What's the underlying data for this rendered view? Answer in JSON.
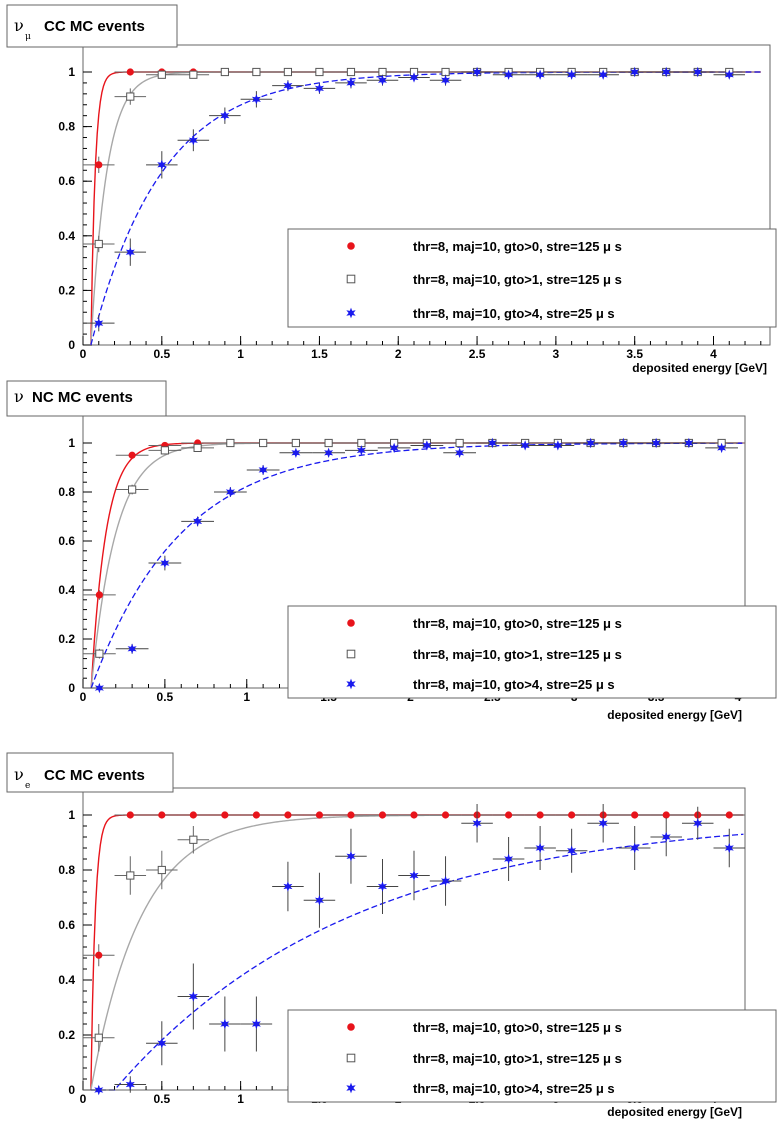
{
  "chart_data": [
    {
      "type": "scatter",
      "title": "CC MC events",
      "title_symbol": "ν",
      "title_subscript": "μ",
      "xlabel": "deposited energy [GeV]",
      "ylabel": "",
      "xlim": [
        0,
        4.3
      ],
      "ylim": [
        0,
        1.1
      ],
      "xticks": [
        0,
        0.5,
        1,
        1.5,
        2,
        2.5,
        3,
        3.5,
        4
      ],
      "xtick_labels": [
        "0",
        "0.5",
        "1",
        "1.5",
        "2",
        "2.5",
        "3",
        "3.5",
        "4"
      ],
      "yticks": [
        0,
        0.2,
        0.4,
        0.6,
        0.8,
        1
      ],
      "ytick_labels": [
        "0",
        "0.2",
        "0.4",
        "0.6",
        "0.8",
        "1"
      ],
      "grid": false,
      "legend_position": "right",
      "series": [
        {
          "name": "thr=8, maj=10, gto>0, stre=125 μ s",
          "marker": "circle",
          "color": "#e8141b",
          "line_style": "solid",
          "fit_scale": 0.027,
          "x": [
            0.1,
            0.3,
            0.5,
            0.7,
            0.9,
            1.1,
            1.3,
            1.5,
            1.7,
            1.9,
            2.1,
            2.3,
            2.5,
            2.7,
            2.9,
            3.1,
            3.3,
            3.5,
            3.7,
            3.9,
            4.1
          ],
          "y": [
            0.66,
            1.0,
            1.0,
            1.0,
            1.0,
            1.0,
            1.0,
            1.0,
            1.0,
            1.0,
            1.0,
            1.0,
            1.0,
            1.0,
            1.0,
            1.0,
            1.0,
            1.0,
            1.0,
            1.0,
            1.0
          ],
          "yerr": [
            0.03,
            0,
            0,
            0,
            0,
            0,
            0,
            0,
            0,
            0,
            0,
            0,
            0,
            0,
            0,
            0,
            0,
            0,
            0,
            0,
            0
          ]
        },
        {
          "name": "thr=8, maj=10, gto>1, stre=125 μ s",
          "marker": "open-square",
          "color": "#555555",
          "line_style": "solid",
          "line_color": "#a8a8a8",
          "fit_scale": 0.1,
          "x": [
            0.1,
            0.3,
            0.5,
            0.7,
            0.9,
            1.1,
            1.3,
            1.5,
            1.7,
            1.9,
            2.1,
            2.3,
            2.5,
            2.7,
            2.9,
            3.1,
            3.3,
            3.5,
            3.7,
            3.9,
            4.1
          ],
          "y": [
            0.37,
            0.91,
            0.99,
            0.99,
            1.0,
            1.0,
            1.0,
            1.0,
            1.0,
            1.0,
            1.0,
            1.0,
            1.0,
            1.0,
            1.0,
            1.0,
            1.0,
            1.0,
            1.0,
            1.0,
            1.0
          ],
          "yerr": [
            0.03,
            0.03,
            0.01,
            0.01,
            0,
            0,
            0,
            0,
            0,
            0,
            0,
            0,
            0,
            0,
            0,
            0,
            0,
            0,
            0,
            0,
            0
          ]
        },
        {
          "name": "thr=8, maj=10, gto>4, stre=25 μ s",
          "marker": "star",
          "color": "#1a1aee",
          "line_style": "dashed",
          "fit_scale": 0.45,
          "x": [
            0.1,
            0.3,
            0.5,
            0.7,
            0.9,
            1.1,
            1.3,
            1.5,
            1.7,
            1.9,
            2.1,
            2.3,
            2.5,
            2.7,
            2.9,
            3.1,
            3.3,
            3.5,
            3.7,
            3.9,
            4.1
          ],
          "y": [
            0.08,
            0.34,
            0.66,
            0.75,
            0.84,
            0.9,
            0.95,
            0.94,
            0.96,
            0.97,
            0.98,
            0.97,
            1.0,
            0.99,
            0.99,
            0.99,
            0.99,
            1.0,
            1.0,
            1.0,
            0.99
          ],
          "yerr": [
            0.03,
            0.05,
            0.05,
            0.04,
            0.03,
            0.03,
            0.02,
            0.02,
            0.02,
            0.02,
            0.01,
            0.02,
            0.01,
            0.01,
            0.01,
            0.01,
            0.01,
            0.01,
            0.01,
            0.01,
            0.01
          ]
        }
      ]
    },
    {
      "type": "scatter",
      "title": "NC MC events",
      "title_symbol": "ν",
      "title_subscript": "",
      "xlabel": "deposited energy [GeV]",
      "ylabel": "",
      "xlim": [
        0,
        4.05
      ],
      "ylim": [
        0,
        1.1
      ],
      "xticks": [
        0,
        0.5,
        1,
        1.5,
        2,
        2.5,
        3,
        3.5,
        4
      ],
      "xtick_labels": [
        "0",
        "0.5",
        "1",
        "1.5",
        "2",
        "2.5",
        "3",
        "3.5",
        "4"
      ],
      "yticks": [
        0,
        0.2,
        0.4,
        0.6,
        0.8,
        1
      ],
      "ytick_labels": [
        "0",
        "0.2",
        "0.4",
        "0.6",
        "0.8",
        "1"
      ],
      "grid": false,
      "legend_position": "bottom-right",
      "series": [
        {
          "name": "thr=8, maj=10, gto>0, stre=125 μ s",
          "marker": "circle",
          "color": "#e8141b",
          "line_style": "solid",
          "fit_scale": 0.09,
          "x": [
            0.1,
            0.3,
            0.5,
            0.7,
            0.9,
            1.1,
            1.3,
            1.5,
            1.7,
            1.9,
            2.1,
            2.3,
            2.5,
            2.7,
            2.9,
            3.1,
            3.3,
            3.5,
            3.7,
            3.9
          ],
          "y": [
            0.38,
            0.95,
            0.99,
            1.0,
            1.0,
            1.0,
            1.0,
            1.0,
            1.0,
            1.0,
            1.0,
            1.0,
            1.0,
            1.0,
            1.0,
            1.0,
            1.0,
            1.0,
            1.0,
            1.0
          ],
          "yerr": [
            0.02,
            0.01,
            0.01,
            0,
            0,
            0,
            0,
            0,
            0,
            0,
            0,
            0,
            0,
            0,
            0,
            0,
            0,
            0,
            0,
            0
          ]
        },
        {
          "name": "thr=8, maj=10, gto>1, stre=125 μ s",
          "marker": "open-square",
          "color": "#555555",
          "line_style": "solid",
          "line_color": "#a8a8a8",
          "fit_scale": 0.15,
          "x": [
            0.1,
            0.3,
            0.5,
            0.7,
            0.9,
            1.1,
            1.3,
            1.5,
            1.7,
            1.9,
            2.1,
            2.3,
            2.5,
            2.7,
            2.9,
            3.1,
            3.3,
            3.5,
            3.7,
            3.9
          ],
          "y": [
            0.14,
            0.81,
            0.97,
            0.98,
            1.0,
            1.0,
            1.0,
            1.0,
            1.0,
            1.0,
            1.0,
            1.0,
            1.0,
            1.0,
            1.0,
            1.0,
            1.0,
            1.0,
            1.0,
            1.0
          ],
          "yerr": [
            0.02,
            0.02,
            0.01,
            0.01,
            0,
            0,
            0,
            0,
            0,
            0,
            0,
            0,
            0,
            0,
            0,
            0,
            0,
            0,
            0,
            0
          ]
        },
        {
          "name": "thr=8, maj=10, gto>4, stre=25 μ s",
          "marker": "star",
          "color": "#1a1aee",
          "line_style": "dashed",
          "fit_scale": 0.55,
          "x": [
            0.1,
            0.3,
            0.5,
            0.7,
            0.9,
            1.1,
            1.3,
            1.5,
            1.7,
            1.9,
            2.1,
            2.3,
            2.5,
            2.7,
            2.9,
            3.1,
            3.3,
            3.5,
            3.7,
            3.9
          ],
          "y": [
            0.0,
            0.16,
            0.51,
            0.68,
            0.8,
            0.89,
            0.96,
            0.96,
            0.97,
            0.98,
            0.99,
            0.96,
            1.0,
            0.99,
            0.99,
            1.0,
            1.0,
            1.0,
            1.0,
            0.98
          ],
          "yerr": [
            0.01,
            0.02,
            0.03,
            0.02,
            0.02,
            0.02,
            0.01,
            0.01,
            0.01,
            0.01,
            0.01,
            0.01,
            0.01,
            0.01,
            0.01,
            0.01,
            0.01,
            0.01,
            0.01,
            0.01
          ]
        }
      ]
    },
    {
      "type": "scatter",
      "title": "CC MC events",
      "title_symbol": "ν",
      "title_subscript": "e",
      "xlabel": "deposited energy [GeV]",
      "ylabel": "",
      "xlim": [
        0,
        4.3
      ],
      "ylim": [
        0,
        1.1
      ],
      "xticks": [
        0,
        0.5,
        1,
        1.5,
        2,
        2.5,
        3,
        3.5,
        4
      ],
      "xtick_labels": [
        "0",
        "0.5",
        "1",
        "1.5",
        "2",
        "2.5",
        "3",
        "3.5",
        "4"
      ],
      "yticks": [
        0,
        0.2,
        0.4,
        0.6,
        0.8,
        1
      ],
      "ytick_labels": [
        "0",
        "0.2",
        "0.4",
        "0.6",
        "0.8",
        "1"
      ],
      "grid": false,
      "legend_position": "bottom-right",
      "series": [
        {
          "name": "thr=8, maj=10, gto>0, stre=125 μ s",
          "marker": "circle",
          "color": "#e8141b",
          "line_style": "solid",
          "fit_scale": 0.027,
          "x": [
            0.1,
            0.3,
            0.5,
            0.7,
            0.9,
            1.1,
            1.3,
            1.5,
            1.7,
            1.9,
            2.1,
            2.3,
            2.5,
            2.7,
            2.9,
            3.1,
            3.3,
            3.5,
            3.7,
            3.9,
            4.1
          ],
          "y": [
            0.49,
            1.0,
            1.0,
            1.0,
            1.0,
            1.0,
            1.0,
            1.0,
            1.0,
            1.0,
            1.0,
            1.0,
            1.0,
            1.0,
            1.0,
            1.0,
            1.0,
            1.0,
            1.0,
            1.0,
            1.0
          ],
          "yerr": [
            0.04,
            0,
            0,
            0,
            0,
            0,
            0,
            0,
            0,
            0,
            0,
            0,
            0,
            0,
            0,
            0,
            0,
            0,
            0,
            0,
            0
          ]
        },
        {
          "name": "thr=8, maj=10, gto>1, stre=125 μ s",
          "marker": "open-square",
          "color": "#555555",
          "line_style": "solid",
          "line_color": "#a8a8a8",
          "fit_scale": 0.32,
          "x": [
            0.1,
            0.3,
            0.5,
            0.7
          ],
          "y": [
            0.19,
            0.78,
            0.8,
            0.91
          ],
          "yerr": [
            0.05,
            0.07,
            0.07,
            0.05
          ]
        },
        {
          "name": "thr=8, maj=10, gto>4, stre=25 μ s",
          "marker": "star",
          "color": "#1a1aee",
          "line_style": "dashed",
          "fit_scale": 1.5,
          "fit_x0": 0.2,
          "x": [
            0.1,
            0.3,
            0.5,
            0.7,
            0.9,
            1.1,
            1.3,
            1.5,
            1.7,
            1.9,
            2.1,
            2.3,
            2.5,
            2.7,
            2.9,
            3.1,
            3.3,
            3.5,
            3.7,
            3.9,
            4.1
          ],
          "y": [
            0.0,
            0.02,
            0.17,
            0.34,
            0.24,
            0.24,
            0.74,
            0.69,
            0.85,
            0.74,
            0.78,
            0.76,
            0.97,
            0.84,
            0.88,
            0.87,
            0.97,
            0.88,
            0.92,
            0.97,
            0.88
          ],
          "yerr": [
            0.01,
            0.03,
            0.08,
            0.12,
            0.1,
            0.1,
            0.09,
            0.1,
            0.1,
            0.1,
            0.09,
            0.09,
            0.07,
            0.08,
            0.08,
            0.08,
            0.07,
            0.08,
            0.07,
            0.06,
            0.07
          ]
        }
      ]
    }
  ]
}
